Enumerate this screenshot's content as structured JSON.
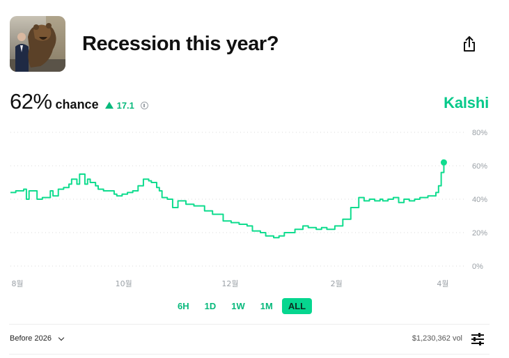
{
  "header": {
    "title": "Recession this year?",
    "share_icon": "share-icon",
    "thumbnail": "bear-statue-photo"
  },
  "odds": {
    "percent": "62%",
    "chance_label": "chance",
    "delta": "17.1",
    "delta_icon": "up-triangle-icon",
    "info_icon": "info-icon"
  },
  "brand": {
    "name": "Kalshi",
    "color": "#06c98a"
  },
  "ranges": {
    "items": [
      {
        "label": "6H"
      },
      {
        "label": "1D"
      },
      {
        "label": "1W"
      },
      {
        "label": "1M"
      },
      {
        "label": "ALL"
      }
    ],
    "selected": "ALL"
  },
  "footer": {
    "filter_label": "Before 2026",
    "volume": "$1,230,362 vol",
    "filter_icon": "sliders-icon"
  },
  "chart_data": {
    "type": "line",
    "color": "#0fdc8e",
    "grid": true,
    "ylim": [
      0,
      80
    ],
    "y_ticks": [
      0,
      20,
      40,
      60,
      80
    ],
    "y_tick_labels": [
      "0%",
      "20%",
      "40%",
      "60%",
      "80%"
    ],
    "x_ticks": [
      0,
      4,
      8,
      12,
      16
    ],
    "x_tick_labels": [
      "8월",
      "10월",
      "12월",
      "2월",
      "4월"
    ],
    "xlim": [
      0,
      17.1
    ],
    "series": [
      {
        "x": [
          0,
          0.2,
          0.5,
          0.6,
          0.7,
          1.0,
          1.2,
          1.5,
          1.6,
          1.8,
          2.0,
          2.2,
          2.3,
          2.5,
          2.6,
          2.8,
          2.9,
          3.0,
          3.2,
          3.3,
          3.5,
          3.7,
          3.9,
          4.0,
          4.2,
          4.4,
          4.6,
          4.8,
          5.0,
          5.2,
          5.3,
          5.5,
          5.6,
          5.7,
          5.9,
          6.1,
          6.3,
          6.6,
          6.9,
          7.3,
          7.6,
          8.0,
          8.3,
          8.6,
          8.9,
          9.1,
          9.4,
          9.6,
          9.9,
          10.1,
          10.3,
          10.5,
          10.7,
          11.0,
          11.2,
          11.5,
          11.7,
          11.9,
          12.2,
          12.5,
          12.8,
          13.1,
          13.3,
          13.5,
          13.7,
          13.9,
          14.0,
          14.2,
          14.4,
          14.6,
          14.8,
          15.0,
          15.2,
          15.4,
          15.5,
          15.7,
          15.9,
          16.0,
          16.1,
          16.2,
          16.3
        ],
        "y": [
          44,
          45,
          46,
          40,
          45,
          40,
          41,
          45,
          42,
          46,
          47,
          49,
          52,
          49,
          55,
          49,
          52,
          50,
          48,
          46,
          45,
          45,
          43,
          42,
          43,
          44,
          45,
          48,
          52,
          51,
          50,
          47,
          45,
          41,
          40,
          35,
          39,
          37,
          36,
          33,
          31,
          27,
          26,
          25,
          24,
          21,
          20,
          18,
          17,
          18,
          20,
          20,
          22,
          24,
          23,
          22,
          23,
          22,
          24,
          28,
          35,
          41,
          39,
          40,
          39,
          40,
          39,
          40,
          41,
          38,
          40,
          39,
          40,
          41,
          41,
          42,
          42,
          44,
          48,
          56,
          62
        ]
      }
    ]
  }
}
